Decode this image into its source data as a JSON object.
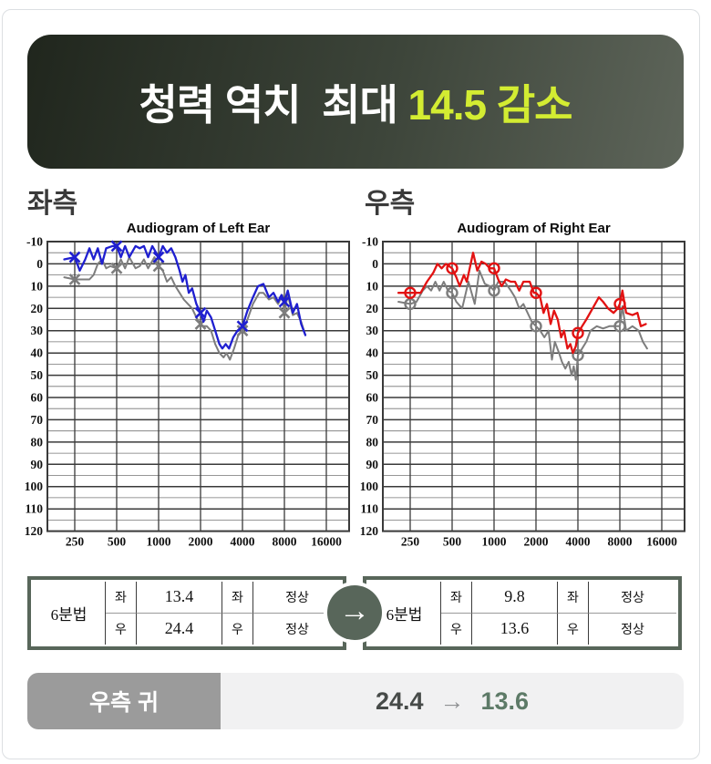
{
  "banner": {
    "text_main": "청력 역치  최대 ",
    "text_highlight": "14.5 감소",
    "highlight_color": "#d3ec32"
  },
  "sections": {
    "left_label": "좌측",
    "right_label": "우측"
  },
  "chart_data": [
    {
      "type": "line",
      "title": "Audiogram of Left Ear",
      "xlabel": "",
      "ylabel": "",
      "ylim": [
        -10,
        120
      ],
      "y_tick_step": 10,
      "x_tick_labels": [
        "250",
        "500",
        "1000",
        "2000",
        "4000",
        "8000",
        "16000"
      ],
      "grid": "on",
      "trace_x_units": "octaves_above_250Hz",
      "series": [
        {
          "name": "previous-test-gray",
          "color": "#7d7d7d",
          "width": 2.0,
          "marker": "x",
          "markers": [
            {
              "freq": 250,
              "db": 7
            },
            {
              "freq": 500,
              "db": 2
            },
            {
              "freq": 1000,
              "db": 1
            },
            {
              "freq": 2000,
              "db": 27
            },
            {
              "freq": 4000,
              "db": 30
            },
            {
              "freq": 8000,
              "db": 22
            }
          ],
          "trace_oct_db": [
            [
              -0.25,
              6
            ],
            [
              0,
              7
            ],
            [
              0.2,
              7
            ],
            [
              0.35,
              7
            ],
            [
              0.45,
              5
            ],
            [
              0.55,
              0
            ],
            [
              0.65,
              -2
            ],
            [
              0.75,
              2
            ],
            [
              0.85,
              1
            ],
            [
              1,
              2
            ],
            [
              1.1,
              -2
            ],
            [
              1.2,
              2
            ],
            [
              1.3,
              -3
            ],
            [
              1.45,
              2
            ],
            [
              1.55,
              1
            ],
            [
              1.65,
              -2
            ],
            [
              1.75,
              2
            ],
            [
              1.9,
              -3
            ],
            [
              2,
              1
            ],
            [
              2.1,
              3
            ],
            [
              2.2,
              8
            ],
            [
              2.3,
              6
            ],
            [
              2.4,
              10
            ],
            [
              2.5,
              13
            ],
            [
              2.6,
              16
            ],
            [
              2.7,
              18
            ],
            [
              2.8,
              20
            ],
            [
              2.9,
              24
            ],
            [
              3,
              27
            ],
            [
              3.07,
              28
            ],
            [
              3.15,
              28
            ],
            [
              3.25,
              30
            ],
            [
              3.35,
              36
            ],
            [
              3.45,
              40
            ],
            [
              3.55,
              42
            ],
            [
              3.62,
              40
            ],
            [
              3.7,
              43
            ],
            [
              3.8,
              38
            ],
            [
              3.9,
              32
            ],
            [
              4,
              30
            ],
            [
              4.1,
              26
            ],
            [
              4.25,
              18
            ],
            [
              4.4,
              13
            ],
            [
              4.5,
              13
            ],
            [
              4.63,
              16
            ],
            [
              4.74,
              15
            ],
            [
              4.85,
              18
            ],
            [
              4.95,
              14
            ],
            [
              5,
              22
            ],
            [
              5.08,
              14
            ],
            [
              5.2,
              23
            ],
            [
              5.3,
              22
            ],
            [
              5.4,
              26
            ],
            [
              5.5,
              32
            ]
          ]
        },
        {
          "name": "current-test-blue",
          "color": "#1f1fd0",
          "width": 2.3,
          "marker": "x",
          "markers": [
            {
              "freq": 250,
              "db": -3
            },
            {
              "freq": 500,
              "db": -8
            },
            {
              "freq": 1000,
              "db": -3
            },
            {
              "freq": 2000,
              "db": 22
            },
            {
              "freq": 4000,
              "db": 28
            },
            {
              "freq": 8000,
              "db": 17
            }
          ],
          "trace_oct_db": [
            [
              -0.25,
              -2
            ],
            [
              0,
              -3
            ],
            [
              0.12,
              3
            ],
            [
              0.25,
              -2
            ],
            [
              0.35,
              -7
            ],
            [
              0.45,
              -2
            ],
            [
              0.55,
              -7
            ],
            [
              0.65,
              0
            ],
            [
              0.75,
              -7
            ],
            [
              0.9,
              -8
            ],
            [
              1,
              -8
            ],
            [
              1.1,
              -3
            ],
            [
              1.2,
              -8
            ],
            [
              1.3,
              -3
            ],
            [
              1.45,
              -8
            ],
            [
              1.55,
              -7
            ],
            [
              1.65,
              -8
            ],
            [
              1.75,
              -3
            ],
            [
              1.85,
              -8
            ],
            [
              2,
              -3
            ],
            [
              2.1,
              -8
            ],
            [
              2.2,
              -5
            ],
            [
              2.3,
              -7
            ],
            [
              2.4,
              -3
            ],
            [
              2.5,
              3
            ],
            [
              2.57,
              8
            ],
            [
              2.64,
              5
            ],
            [
              2.72,
              13
            ],
            [
              2.8,
              11
            ],
            [
              2.9,
              18
            ],
            [
              3,
              22
            ],
            [
              3.07,
              26
            ],
            [
              3.15,
              21
            ],
            [
              3.25,
              24
            ],
            [
              3.35,
              30
            ],
            [
              3.45,
              36
            ],
            [
              3.52,
              38
            ],
            [
              3.6,
              36
            ],
            [
              3.68,
              38
            ],
            [
              3.78,
              33
            ],
            [
              3.88,
              30
            ],
            [
              4,
              28
            ],
            [
              4.12,
              21
            ],
            [
              4.25,
              15
            ],
            [
              4.37,
              10
            ],
            [
              4.5,
              9
            ],
            [
              4.63,
              15
            ],
            [
              4.74,
              13
            ],
            [
              4.85,
              17
            ],
            [
              4.93,
              14
            ],
            [
              5,
              17
            ],
            [
              5.08,
              12
            ],
            [
              5.2,
              22
            ],
            [
              5.3,
              18
            ],
            [
              5.4,
              27
            ],
            [
              5.5,
              32
            ]
          ]
        }
      ]
    },
    {
      "type": "line",
      "title": "Audiogram of Right Ear",
      "xlabel": "",
      "ylabel": "",
      "ylim": [
        -10,
        120
      ],
      "y_tick_step": 10,
      "x_tick_labels": [
        "250",
        "500",
        "1000",
        "2000",
        "4000",
        "8000",
        "16000"
      ],
      "grid": "on",
      "trace_x_units": "octaves_above_250Hz",
      "series": [
        {
          "name": "previous-test-gray",
          "color": "#7d7d7d",
          "width": 2.0,
          "marker": "o",
          "markers": [
            {
              "freq": 250,
              "db": 18
            },
            {
              "freq": 500,
              "db": 13
            },
            {
              "freq": 1000,
              "db": 12
            },
            {
              "freq": 2000,
              "db": 28
            },
            {
              "freq": 4000,
              "db": 41
            },
            {
              "freq": 8000,
              "db": 28
            }
          ],
          "trace_oct_db": [
            [
              -0.28,
              17
            ],
            [
              0,
              18
            ],
            [
              0.15,
              17
            ],
            [
              0.3,
              12
            ],
            [
              0.4,
              10
            ],
            [
              0.5,
              12
            ],
            [
              0.6,
              8
            ],
            [
              0.7,
              12
            ],
            [
              0.8,
              8
            ],
            [
              0.9,
              12
            ],
            [
              1,
              13
            ],
            [
              1.1,
              17
            ],
            [
              1.24,
              20
            ],
            [
              1.39,
              8
            ],
            [
              1.54,
              18
            ],
            [
              1.65,
              3
            ],
            [
              1.78,
              9
            ],
            [
              1.9,
              10
            ],
            [
              2,
              12
            ],
            [
              2.1,
              8
            ],
            [
              2.25,
              8
            ],
            [
              2.4,
              12
            ],
            [
              2.5,
              15
            ],
            [
              2.6,
              20
            ],
            [
              2.7,
              18
            ],
            [
              2.8,
              22
            ],
            [
              2.9,
              26
            ],
            [
              3,
              28
            ],
            [
              3.1,
              30
            ],
            [
              3.2,
              33
            ],
            [
              3.3,
              30
            ],
            [
              3.38,
              43
            ],
            [
              3.45,
              35
            ],
            [
              3.55,
              40
            ],
            [
              3.62,
              44
            ],
            [
              3.7,
              47
            ],
            [
              3.78,
              44
            ],
            [
              3.85,
              50
            ],
            [
              3.9,
              46
            ],
            [
              3.95,
              52
            ],
            [
              4,
              41
            ],
            [
              4.1,
              38
            ],
            [
              4.2,
              35
            ],
            [
              4.3,
              30
            ],
            [
              4.45,
              28
            ],
            [
              4.6,
              29
            ],
            [
              4.75,
              28
            ],
            [
              4.9,
              28
            ],
            [
              5,
              28
            ],
            [
              5.06,
              19
            ],
            [
              5.15,
              30
            ],
            [
              5.3,
              28
            ],
            [
              5.45,
              30
            ],
            [
              5.55,
              35
            ],
            [
              5.65,
              38
            ]
          ]
        },
        {
          "name": "current-test-red",
          "color": "#e21212",
          "width": 2.3,
          "marker": "o",
          "markers": [
            {
              "freq": 250,
              "db": 13
            },
            {
              "freq": 500,
              "db": 2
            },
            {
              "freq": 1000,
              "db": 2
            },
            {
              "freq": 2000,
              "db": 13
            },
            {
              "freq": 4000,
              "db": 31
            },
            {
              "freq": 8000,
              "db": 18
            }
          ],
          "trace_oct_db": [
            [
              -0.28,
              13
            ],
            [
              0,
              13
            ],
            [
              0.25,
              13
            ],
            [
              0.4,
              8
            ],
            [
              0.55,
              4
            ],
            [
              0.65,
              0
            ],
            [
              0.75,
              2
            ],
            [
              0.85,
              0
            ],
            [
              1,
              2
            ],
            [
              1.1,
              6
            ],
            [
              1.18,
              10
            ],
            [
              1.28,
              5
            ],
            [
              1.35,
              8
            ],
            [
              1.5,
              -5
            ],
            [
              1.6,
              3
            ],
            [
              1.7,
              -1
            ],
            [
              1.8,
              0
            ],
            [
              1.9,
              2
            ],
            [
              2,
              2
            ],
            [
              2.1,
              7
            ],
            [
              2.18,
              10
            ],
            [
              2.28,
              7
            ],
            [
              2.4,
              8
            ],
            [
              2.5,
              8
            ],
            [
              2.6,
              12
            ],
            [
              2.7,
              8
            ],
            [
              2.85,
              8
            ],
            [
              2.95,
              13
            ],
            [
              3,
              13
            ],
            [
              3.1,
              15
            ],
            [
              3.18,
              22
            ],
            [
              3.26,
              18
            ],
            [
              3.35,
              27
            ],
            [
              3.43,
              21
            ],
            [
              3.52,
              25
            ],
            [
              3.6,
              33
            ],
            [
              3.67,
              30
            ],
            [
              3.75,
              38
            ],
            [
              3.82,
              36
            ],
            [
              3.88,
              40
            ],
            [
              3.95,
              37
            ],
            [
              4,
              31
            ],
            [
              4.1,
              28
            ],
            [
              4.2,
              25
            ],
            [
              4.35,
              20
            ],
            [
              4.5,
              15
            ],
            [
              4.6,
              17
            ],
            [
              4.72,
              20
            ],
            [
              4.85,
              22
            ],
            [
              4.95,
              20
            ],
            [
              5,
              18
            ],
            [
              5.06,
              12
            ],
            [
              5.15,
              22
            ],
            [
              5.3,
              23
            ],
            [
              5.42,
              22
            ],
            [
              5.5,
              28
            ],
            [
              5.62,
              27
            ]
          ]
        }
      ]
    }
  ],
  "tables": {
    "before": {
      "method": "6분법",
      "rows": [
        [
          "좌",
          "13.4",
          "좌",
          "정상"
        ],
        [
          "우",
          "24.4",
          "우",
          "정상"
        ]
      ]
    },
    "after": {
      "method": "6분법",
      "rows": [
        [
          "좌",
          "9.8",
          "좌",
          "정상"
        ],
        [
          "우",
          "13.6",
          "우",
          "정상"
        ]
      ]
    },
    "arrow": "→"
  },
  "summary": {
    "label": "우측 귀",
    "before": "24.4",
    "arrow": "→",
    "after": "13.6"
  }
}
